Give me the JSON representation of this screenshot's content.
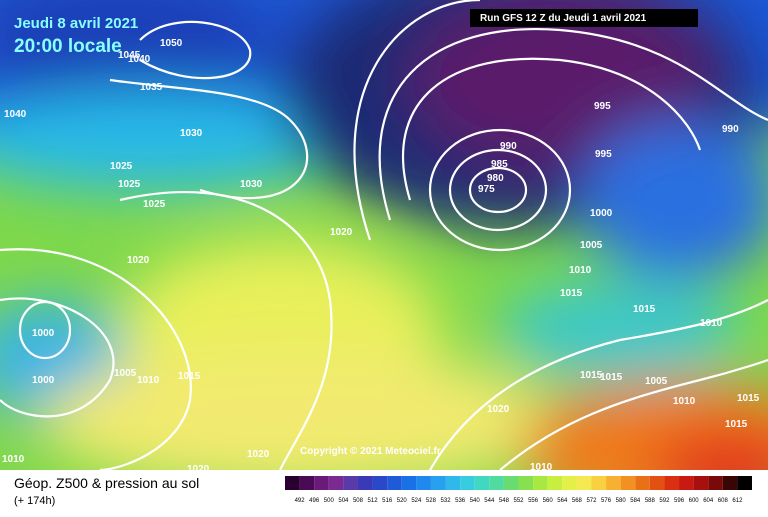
{
  "header": {
    "date": "Jeudi 8 avril 2021",
    "time": "20:00 locale",
    "run": "Run GFS 12 Z du Jeudi 1 avril 2021"
  },
  "copyright": "Copyright © 2021 Meteociel.fr",
  "footer": {
    "title": "Géop. Z500 & pression au sol",
    "lead": "(+ 174h)"
  },
  "scale": [
    492,
    496,
    500,
    504,
    508,
    512,
    516,
    520,
    524,
    528,
    532,
    536,
    540,
    544,
    548,
    552,
    556,
    560,
    564,
    568,
    572,
    576,
    580,
    584,
    588,
    592,
    596,
    600,
    604,
    608,
    612
  ],
  "isobars": [
    "1050",
    "1045",
    "1040",
    "1035",
    "1040",
    "1030",
    "1025",
    "1025",
    "1025",
    "1030",
    "1020",
    "1020",
    "1000",
    "1000",
    "1005",
    "1010",
    "1015",
    "1010",
    "1020",
    "1020",
    "1010",
    "1020",
    "1015",
    "1015",
    "1005",
    "1010",
    "1015",
    "1015",
    "1015",
    "1015",
    "1010",
    "1005",
    "1010",
    "1000",
    "995",
    "995",
    "990",
    "990",
    "985",
    "980",
    "975"
  ]
}
